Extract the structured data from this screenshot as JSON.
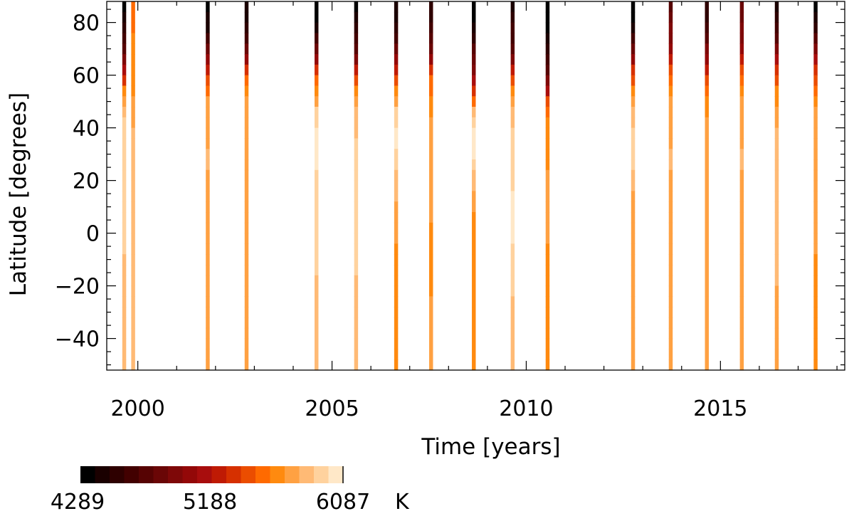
{
  "chart_data": {
    "type": "heatmap",
    "xlabel": "Time [years]",
    "ylabel": "Latitude [degrees]",
    "xlim": [
      1999.2,
      2018.2
    ],
    "ylim": [
      -52,
      88
    ],
    "xticks": [
      2000,
      2005,
      2010,
      2015
    ],
    "yticks": [
      -40,
      -20,
      0,
      20,
      40,
      60,
      80
    ],
    "colorbar": {
      "colormap": "IDL red temperature",
      "colors": [
        "#000000",
        "#1a0000",
        "#2e0000",
        "#420000",
        "#560303",
        "#6a0606",
        "#7e0808",
        "#930808",
        "#a80d0d",
        "#bf1a04",
        "#d63000",
        "#eb4d00",
        "#ff6a00",
        "#ff8a0f",
        "#ffa142",
        "#ffba75",
        "#ffd29e",
        "#ffe8c8"
      ],
      "tick_labels": [
        "4289",
        "5188",
        "6087"
      ],
      "unit": "K",
      "min": 4289,
      "max": 6087
    },
    "latitude_bands": [
      88,
      84,
      80,
      76,
      72,
      68,
      64,
      60,
      56,
      52,
      48,
      44,
      40,
      36,
      32,
      28,
      24,
      20,
      16,
      12,
      8,
      4,
      0,
      -4,
      -8,
      -12,
      -16,
      -20,
      -24,
      -28,
      -32,
      -36,
      -40,
      -44,
      -48
    ],
    "lat_step": 4,
    "strip_width_years": 0.1,
    "series": [
      {
        "x": 1999.65,
        "profile": [
          [
            88,
            4289
          ],
          [
            80,
            4450
          ],
          [
            72,
            4700
          ],
          [
            62,
            5100
          ],
          [
            54,
            5600
          ],
          [
            46,
            5850
          ],
          [
            36,
            5950
          ],
          [
            20,
            5950
          ],
          [
            0,
            5900
          ],
          [
            -30,
            5850
          ],
          [
            -52,
            5880
          ]
        ]
      },
      {
        "x": 1999.88,
        "profile": [
          [
            88,
            5550
          ],
          [
            70,
            5600
          ],
          [
            50,
            5700
          ],
          [
            30,
            5850
          ],
          [
            10,
            5850
          ],
          [
            -10,
            5800
          ],
          [
            -52,
            5800
          ]
        ]
      },
      {
        "x": 2001.8,
        "profile": [
          [
            88,
            4300
          ],
          [
            78,
            4450
          ],
          [
            70,
            4800
          ],
          [
            60,
            5400
          ],
          [
            50,
            5700
          ],
          [
            30,
            5800
          ],
          [
            0,
            5750
          ],
          [
            -30,
            5750
          ],
          [
            -52,
            5750
          ]
        ]
      },
      {
        "x": 2002.8,
        "profile": [
          [
            88,
            4400
          ],
          [
            76,
            4550
          ],
          [
            68,
            4900
          ],
          [
            60,
            5450
          ],
          [
            50,
            5700
          ],
          [
            30,
            5780
          ],
          [
            0,
            5750
          ],
          [
            -30,
            5750
          ],
          [
            -52,
            5750
          ]
        ]
      },
      {
        "x": 2004.6,
        "profile": [
          [
            88,
            4289
          ],
          [
            78,
            4400
          ],
          [
            70,
            4800
          ],
          [
            62,
            5350
          ],
          [
            54,
            5650
          ],
          [
            46,
            5900
          ],
          [
            38,
            6050
          ],
          [
            30,
            6000
          ],
          [
            10,
            5950
          ],
          [
            -10,
            5900
          ],
          [
            -30,
            5850
          ],
          [
            -52,
            5850
          ]
        ]
      },
      {
        "x": 2005.62,
        "profile": [
          [
            88,
            4350
          ],
          [
            80,
            4450
          ],
          [
            70,
            4750
          ],
          [
            62,
            5200
          ],
          [
            54,
            5600
          ],
          [
            46,
            5800
          ],
          [
            30,
            5950
          ],
          [
            10,
            5950
          ],
          [
            -10,
            5900
          ],
          [
            -30,
            5850
          ],
          [
            -52,
            5850
          ]
        ]
      },
      {
        "x": 2006.65,
        "profile": [
          [
            88,
            4400
          ],
          [
            80,
            4500
          ],
          [
            70,
            4800
          ],
          [
            62,
            5200
          ],
          [
            54,
            5600
          ],
          [
            46,
            5900
          ],
          [
            38,
            6050
          ],
          [
            28,
            5950
          ],
          [
            14,
            5800
          ],
          [
            0,
            5700
          ],
          [
            -20,
            5650
          ],
          [
            -52,
            5650
          ]
        ]
      },
      {
        "x": 2007.55,
        "profile": [
          [
            88,
            4450
          ],
          [
            76,
            4700
          ],
          [
            68,
            4950
          ],
          [
            60,
            5450
          ],
          [
            50,
            5650
          ],
          [
            30,
            5750
          ],
          [
            10,
            5700
          ],
          [
            -10,
            5650
          ],
          [
            -30,
            5700
          ],
          [
            -52,
            5700
          ]
        ]
      },
      {
        "x": 2008.65,
        "profile": [
          [
            88,
            4289
          ],
          [
            80,
            4400
          ],
          [
            70,
            4700
          ],
          [
            62,
            4950
          ],
          [
            54,
            5350
          ],
          [
            46,
            5800
          ],
          [
            38,
            6087
          ],
          [
            30,
            6000
          ],
          [
            20,
            5850
          ],
          [
            10,
            5700
          ],
          [
            0,
            5650
          ],
          [
            -20,
            5650
          ],
          [
            -52,
            5650
          ]
        ]
      },
      {
        "x": 2009.65,
        "profile": [
          [
            88,
            4400
          ],
          [
            80,
            4550
          ],
          [
            70,
            4750
          ],
          [
            62,
            5200
          ],
          [
            54,
            5600
          ],
          [
            46,
            5850
          ],
          [
            30,
            5950
          ],
          [
            10,
            6000
          ],
          [
            0,
            6000
          ],
          [
            -10,
            5950
          ],
          [
            -30,
            5850
          ],
          [
            -52,
            5800
          ]
        ]
      },
      {
        "x": 2010.55,
        "profile": [
          [
            88,
            4289
          ],
          [
            80,
            4350
          ],
          [
            72,
            4500
          ],
          [
            64,
            4650
          ],
          [
            56,
            5000
          ],
          [
            50,
            5450
          ],
          [
            40,
            5650
          ],
          [
            20,
            5700
          ],
          [
            0,
            5700
          ],
          [
            -20,
            5650
          ],
          [
            -52,
            5650
          ]
        ]
      },
      {
        "x": 2012.75,
        "profile": [
          [
            88,
            4289
          ],
          [
            78,
            4400
          ],
          [
            70,
            4800
          ],
          [
            62,
            5300
          ],
          [
            54,
            5650
          ],
          [
            46,
            5800
          ],
          [
            34,
            5950
          ],
          [
            26,
            5900
          ],
          [
            12,
            5750
          ],
          [
            0,
            5700
          ],
          [
            -20,
            5700
          ],
          [
            -52,
            5700
          ]
        ]
      },
      {
        "x": 2013.72,
        "profile": [
          [
            88,
            4700
          ],
          [
            78,
            4900
          ],
          [
            70,
            5000
          ],
          [
            60,
            5500
          ],
          [
            50,
            5700
          ],
          [
            30,
            5800
          ],
          [
            0,
            5750
          ],
          [
            -30,
            5700
          ],
          [
            -52,
            5700
          ]
        ]
      },
      {
        "x": 2014.65,
        "profile": [
          [
            88,
            4450
          ],
          [
            78,
            4650
          ],
          [
            68,
            4950
          ],
          [
            58,
            5400
          ],
          [
            48,
            5650
          ],
          [
            30,
            5780
          ],
          [
            0,
            5750
          ],
          [
            -30,
            5750
          ],
          [
            -52,
            5750
          ]
        ]
      },
      {
        "x": 2015.55,
        "profile": [
          [
            88,
            4800
          ],
          [
            76,
            4950
          ],
          [
            68,
            5100
          ],
          [
            60,
            5500
          ],
          [
            50,
            5700
          ],
          [
            30,
            5800
          ],
          [
            0,
            5750
          ],
          [
            -30,
            5750
          ],
          [
            -52,
            5750
          ]
        ]
      },
      {
        "x": 2016.45,
        "profile": [
          [
            88,
            4450
          ],
          [
            78,
            4600
          ],
          [
            70,
            4900
          ],
          [
            62,
            5300
          ],
          [
            54,
            5600
          ],
          [
            40,
            5800
          ],
          [
            0,
            5800
          ],
          [
            -30,
            5780
          ],
          [
            -52,
            5780
          ]
        ]
      },
      {
        "x": 2017.45,
        "profile": [
          [
            88,
            4289
          ],
          [
            78,
            4500
          ],
          [
            70,
            4900
          ],
          [
            62,
            5300
          ],
          [
            54,
            5550
          ],
          [
            46,
            5700
          ],
          [
            30,
            5750
          ],
          [
            0,
            5700
          ],
          [
            -30,
            5650
          ],
          [
            -52,
            5650
          ]
        ]
      }
    ]
  }
}
